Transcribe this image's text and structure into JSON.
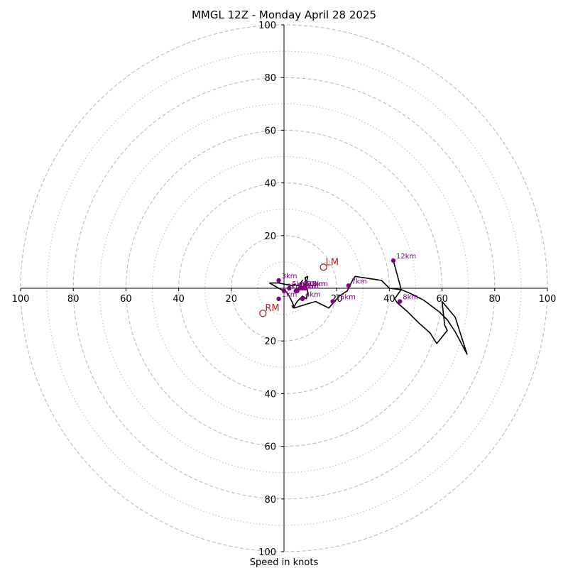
{
  "chart_data": {
    "type": "hodograph",
    "title": "MMGL 12Z - Monday April 28 2025",
    "xlabel": "Speed in knots",
    "axis_range": [
      -100,
      100
    ],
    "ring_major": [
      20,
      40,
      60,
      80,
      100
    ],
    "ring_minor": [
      10,
      30,
      50,
      70,
      90
    ],
    "x_ticks": [
      "100",
      "80",
      "60",
      "40",
      "20",
      "",
      "20",
      "40",
      "60",
      "80",
      "100"
    ],
    "y_ticks": [
      "100",
      "80",
      "60",
      "40",
      "20",
      "",
      "20",
      "40",
      "60",
      "80",
      "100"
    ],
    "hodograph_trace": [
      [
        3,
        -6.5
      ],
      [
        3.5,
        -7.5
      ],
      [
        5,
        -5
      ],
      [
        7,
        -3
      ],
      [
        8.5,
        -4
      ],
      [
        9,
        -1.5
      ],
      [
        8.5,
        1.5
      ],
      [
        8,
        4
      ],
      [
        9,
        4.5
      ],
      [
        8.5,
        2
      ],
      [
        7,
        0.5
      ],
      [
        6,
        1.5
      ],
      [
        7,
        3
      ],
      [
        6,
        1
      ],
      [
        5,
        1
      ],
      [
        4,
        1.5
      ],
      [
        3,
        1
      ],
      [
        -2,
        2
      ],
      [
        -5.5,
        2
      ],
      [
        -2,
        0
      ],
      [
        1,
        -1.5
      ],
      [
        2,
        -3
      ],
      [
        3,
        -5
      ],
      [
        4,
        -7.5
      ],
      [
        7,
        -6.5
      ],
      [
        12,
        -5
      ],
      [
        17,
        -7.5
      ],
      [
        21,
        -3
      ],
      [
        24,
        -1
      ],
      [
        26,
        3
      ],
      [
        27,
        4.5
      ],
      [
        37,
        3
      ],
      [
        40,
        0
      ],
      [
        44.5,
        -0.5
      ],
      [
        48,
        -2
      ],
      [
        53,
        -4.5
      ],
      [
        59,
        -9
      ],
      [
        62,
        -12
      ],
      [
        65,
        -16.5
      ],
      [
        69.5,
        -25
      ],
      [
        65,
        -11
      ],
      [
        60,
        -5
      ],
      [
        61,
        -14
      ],
      [
        62,
        -16
      ],
      [
        58,
        -21
      ],
      [
        55.5,
        -17
      ],
      [
        51,
        -13
      ],
      [
        47,
        -9
      ],
      [
        43,
        -5.5
      ],
      [
        42,
        -4
      ],
      [
        44.5,
        -0.5
      ],
      [
        41.5,
        10.5
      ]
    ],
    "height_markers": [
      {
        "label": "1km",
        "u": -2,
        "v": -4
      },
      {
        "label": "2km",
        "u": 0,
        "v": -1
      },
      {
        "label": "3km",
        "u": -2,
        "v": 3
      },
      {
        "label": "4km",
        "u": 7,
        "v": -4
      },
      {
        "label": "5km",
        "u": 2,
        "v": 0
      },
      {
        "label": "6km",
        "u": 6,
        "v": 0
      },
      {
        "label": "7km",
        "u": 24.5,
        "v": 1
      },
      {
        "label": "8km",
        "u": 44,
        "v": -5
      },
      {
        "label": "9km",
        "u": 5,
        "v": -1
      },
      {
        "label": "10km",
        "u": 7,
        "v": 0
      },
      {
        "label": "11km",
        "u": 4.5,
        "v": -1
      },
      {
        "label": "12km",
        "u": 41.5,
        "v": 10.5
      },
      {
        "label": "13km",
        "u": 8,
        "v": 0
      },
      {
        "label": "15km",
        "u": 18.5,
        "v": -5
      }
    ],
    "storm_motion": [
      {
        "label": "LM",
        "u": 15,
        "v": 8
      },
      {
        "label": "RM",
        "u": -8,
        "v": -9.5
      }
    ],
    "colors": {
      "trace": "#000000",
      "markers": "#800080",
      "storm_motion": "#b22222",
      "rings": "#bbbbbb",
      "axes": "#000000"
    }
  }
}
